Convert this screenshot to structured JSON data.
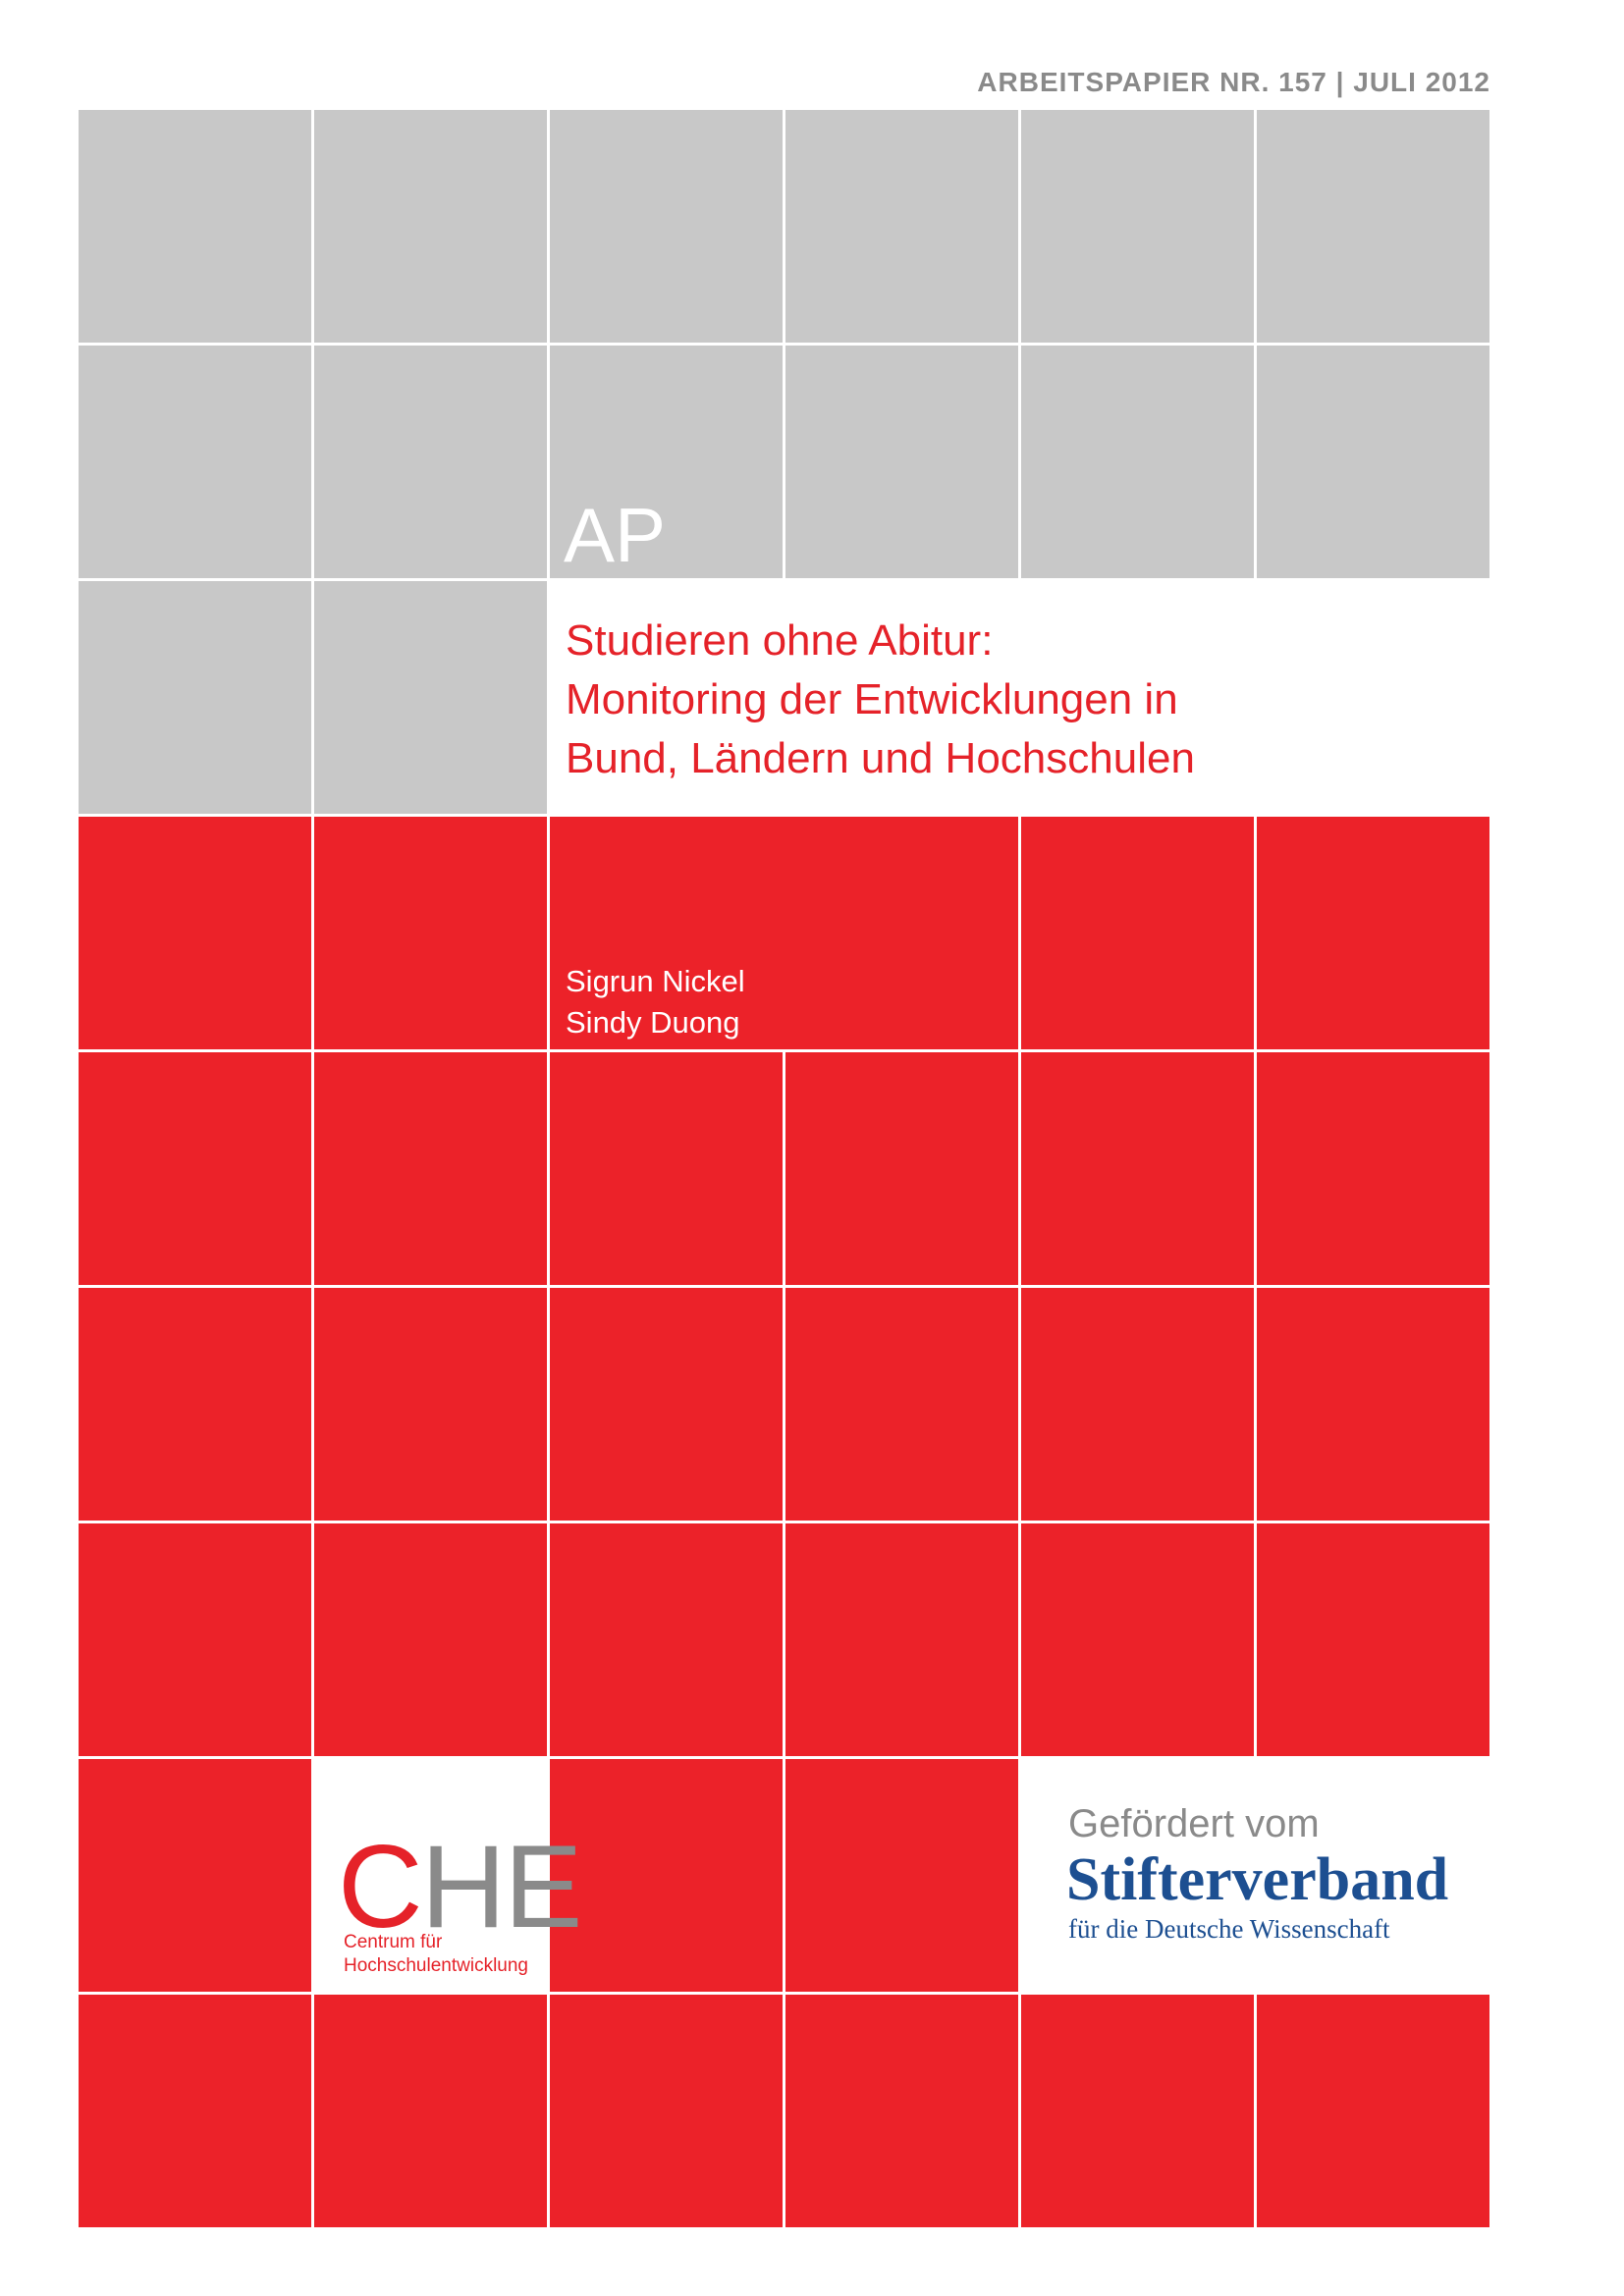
{
  "header": {
    "text": "ARBEITSPAPIER NR. 157  |  JULI 2012"
  },
  "badge": "AP",
  "title": {
    "lines": [
      "Studieren ohne Abitur:",
      "Monitoring der Entwicklungen in",
      "Bund, Ländern und Hochschulen"
    ]
  },
  "authors": [
    "Sigrun Nickel",
    "Sindy Duong"
  ],
  "logo": {
    "initial": "C",
    "rest": "HE",
    "lines": [
      "Centrum für",
      "Hochschulentwicklung"
    ]
  },
  "sponsor": {
    "intro": "Gefördert vom",
    "name": "Stifterverband",
    "subtitle": "für die Deutsche Wissenschaft"
  }
}
